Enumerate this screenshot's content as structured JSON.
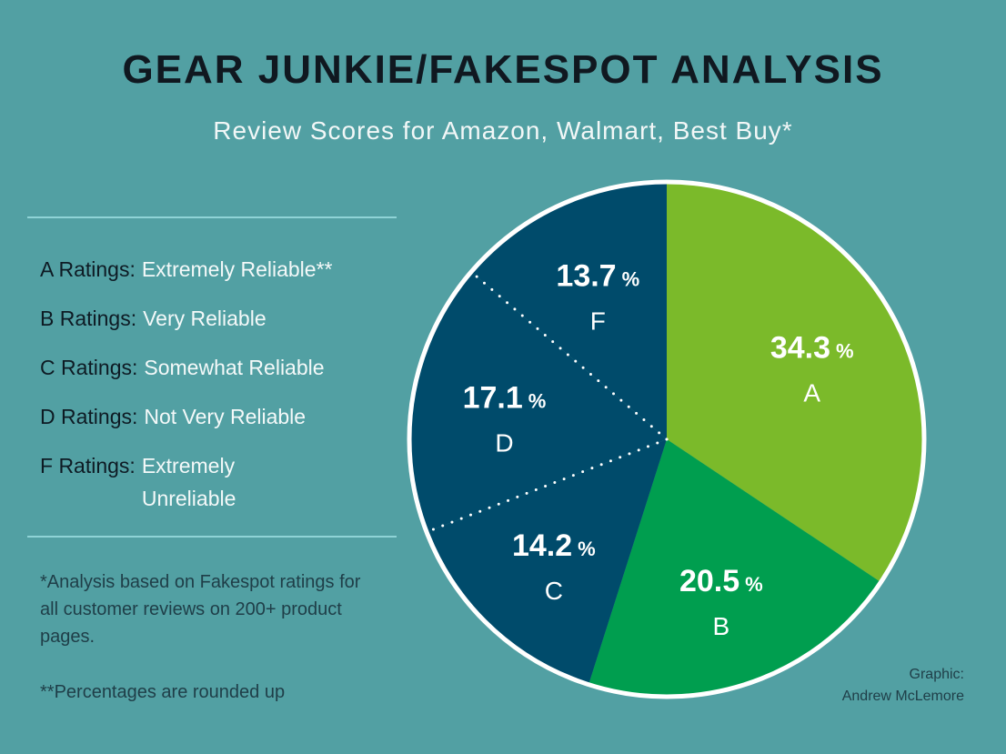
{
  "title": "GEAR JUNKIE/FAKESPOT ANALYSIS",
  "subtitle": "Review Scores for Amazon, Walmart, Best Buy*",
  "legend": [
    {
      "key": "A Ratings:",
      "desc": "Extremely Reliable**"
    },
    {
      "key": "B Ratings:",
      "desc": "Very Reliable"
    },
    {
      "key": "C Ratings:",
      "desc": "Somewhat Reliable"
    },
    {
      "key": "D Ratings:",
      "desc": "Not Very Reliable"
    },
    {
      "key": "F Ratings:",
      "desc": "Extremely Unreliable"
    }
  ],
  "footnotes": {
    "analysis": "*Analysis based on Fakespot ratings for all customer reviews on 200+ product pages.",
    "rounding": "**Percentages are rounded up"
  },
  "credit": {
    "label": "Graphic:",
    "author": "Andrew McLemore"
  },
  "chart_data": {
    "type": "pie",
    "title": "GEAR JUNKIE/FAKESPOT ANALYSIS",
    "subtitle": "Review Scores for Amazon, Walmart, Best Buy*",
    "unit": "%",
    "slices": [
      {
        "label": "A",
        "value": 34.3,
        "value_text": "34.3",
        "color": "#7bba2a"
      },
      {
        "label": "B",
        "value": 20.5,
        "value_text": "20.5",
        "color": "#009e4f"
      },
      {
        "label": "C",
        "value": 14.2,
        "value_text": "14.2",
        "color": "#004b6b"
      },
      {
        "label": "D",
        "value": 17.1,
        "value_text": "17.1",
        "color": "#004b6b"
      },
      {
        "label": "F",
        "value": 13.7,
        "value_text": "13.7",
        "color": "#004b6b"
      }
    ],
    "start": "12 o'clock",
    "direction": "clockwise",
    "outline_color": "#ffffff",
    "separator_style": "dotted"
  }
}
